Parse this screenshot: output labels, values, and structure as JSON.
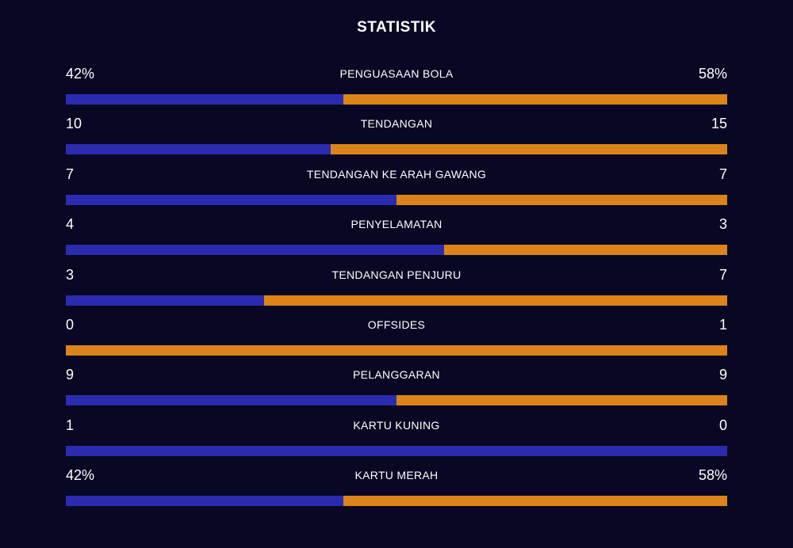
{
  "title": "STATISTIK",
  "colors": {
    "background": "#080824",
    "home": "#2b2bb0",
    "away": "#dc841a"
  },
  "stats": [
    {
      "label": "PENGUASAAN BOLA",
      "home": "42%",
      "away": "58%",
      "home_share": 0.42
    },
    {
      "label": "TENDANGAN",
      "home": "10",
      "away": "15",
      "home_share": 0.4
    },
    {
      "label": "TENDANGAN KE ARAH GAWANG",
      "home": "7",
      "away": "7",
      "home_share": 0.5
    },
    {
      "label": "PENYELAMATAN",
      "home": "4",
      "away": "3",
      "home_share": 0.5714
    },
    {
      "label": "TENDANGAN PENJURU",
      "home": "3",
      "away": "7",
      "home_share": 0.3
    },
    {
      "label": "OFFSIDES",
      "home": "0",
      "away": "1",
      "home_share": 0.0
    },
    {
      "label": "PELANGGARAN",
      "home": "9",
      "away": "9",
      "home_share": 0.5
    },
    {
      "label": "KARTU KUNING",
      "home": "1",
      "away": "0",
      "home_share": 1.0
    },
    {
      "label": "KARTU MERAH",
      "home": "42%",
      "away": "58%",
      "home_share": 0.42
    }
  ]
}
